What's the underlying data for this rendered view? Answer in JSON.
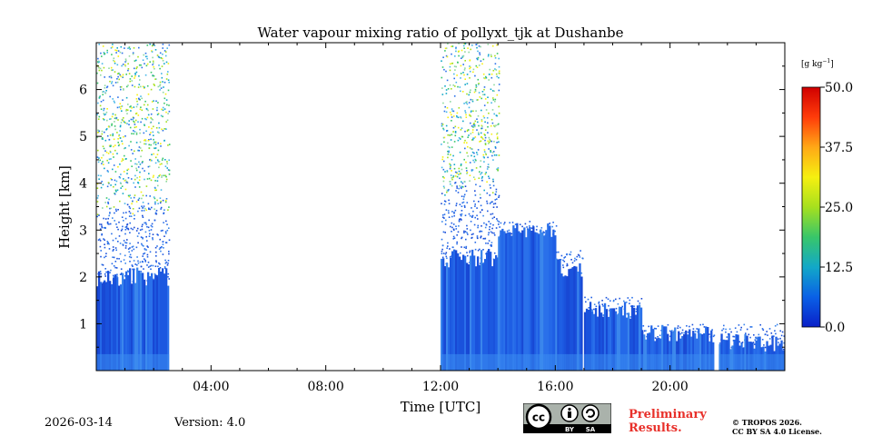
{
  "chart_data": {
    "type": "heatmap",
    "title": "Water vapour mixing ratio of pollyxt_tjk at Dushanbe",
    "xlabel": "Time [UTC]",
    "ylabel": "Height [km]",
    "xlim": [
      0,
      24
    ],
    "ylim": [
      0,
      7
    ],
    "x_ticks": [
      4,
      8,
      12,
      16,
      20
    ],
    "x_tick_labels": [
      "04:00",
      "08:00",
      "12:00",
      "16:00",
      "20:00"
    ],
    "y_ticks": [
      1,
      2,
      3,
      4,
      5,
      6
    ],
    "y_tick_labels": [
      "1",
      "2",
      "3",
      "4",
      "5",
      "6"
    ],
    "colorbar": {
      "unit_label": "[g kg",
      "unit_exponent": "−1",
      "unit_close": "]",
      "range": [
        0,
        50
      ],
      "ticks": [
        0,
        12.5,
        25,
        37.5,
        50
      ],
      "tick_labels": [
        "0.0",
        "12.5",
        "25.0",
        "37.5",
        "50.0"
      ],
      "colors": [
        "#0a20c8",
        "#0a60e6",
        "#12a8c8",
        "#38c66a",
        "#a6e01e",
        "#f6f010",
        "#ffa816",
        "#ff3c0a",
        "#d00000"
      ]
    },
    "segments": [
      {
        "start": 0.0,
        "end": 2.5,
        "dense_top_km": 2.0,
        "scatter_top_km": 7.0
      },
      {
        "start": 12.0,
        "end": 14.0,
        "dense_top_km": 2.4,
        "scatter_top_km": 7.0
      },
      {
        "start": 14.0,
        "end": 16.0,
        "dense_top_km": 3.0,
        "scatter_top_km": 3.2
      },
      {
        "start": 16.0,
        "end": 16.9,
        "dense_top_km": 2.2,
        "scatter_top_km": 2.6
      },
      {
        "start": 17.0,
        "end": 19.0,
        "dense_top_km": 1.3,
        "scatter_top_km": 1.6
      },
      {
        "start": 19.0,
        "end": 21.5,
        "dense_top_km": 0.8,
        "scatter_top_km": 1.0
      },
      {
        "start": 21.7,
        "end": 24.0,
        "dense_top_km": 0.6,
        "scatter_top_km": 1.0
      }
    ]
  },
  "footer": {
    "date": "2026-03-14",
    "version": "Version: 4.0",
    "preliminary_line1": "Preliminary",
    "preliminary_line2": "Results.",
    "license_line1": "© TROPOS 2026.",
    "license_line2": "CC BY SA 4.0 License.",
    "badge": {
      "cc": "cc",
      "by": "BY",
      "sa": "SA"
    }
  }
}
